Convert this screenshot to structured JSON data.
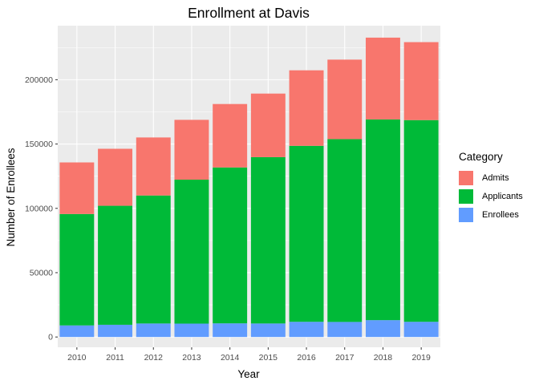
{
  "chart_data": {
    "type": "bar",
    "stacked": true,
    "title": "Enrollment at Davis",
    "xlabel": "Year",
    "ylabel": "Number of Enrollees",
    "categories": [
      "2010",
      "2011",
      "2012",
      "2013",
      "2014",
      "2015",
      "2016",
      "2017",
      "2018",
      "2019"
    ],
    "series": [
      {
        "name": "Enrollees",
        "color": "#619CFF",
        "values": [
          9000,
          9500,
          10500,
          10400,
          10600,
          10500,
          11800,
          11700,
          13100,
          11800
        ]
      },
      {
        "name": "Applicants",
        "color": "#00BA38",
        "values": [
          86600,
          92500,
          99500,
          111900,
          121200,
          129300,
          136800,
          142100,
          156000,
          156800
        ]
      },
      {
        "name": "Admits",
        "color": "#F8766D",
        "values": [
          40100,
          44300,
          45100,
          46500,
          49300,
          49400,
          58700,
          61800,
          63600,
          60600
        ]
      }
    ],
    "ylim": [
      -8000,
      242000
    ],
    "yticks": [
      0,
      50000,
      100000,
      150000,
      200000
    ],
    "ytick_labels": [
      "0",
      "50000",
      "100000",
      "150000",
      "200000"
    ],
    "grid": true,
    "legend": {
      "title": "Category",
      "position": "right",
      "order": [
        "Admits",
        "Applicants",
        "Enrollees"
      ]
    }
  }
}
